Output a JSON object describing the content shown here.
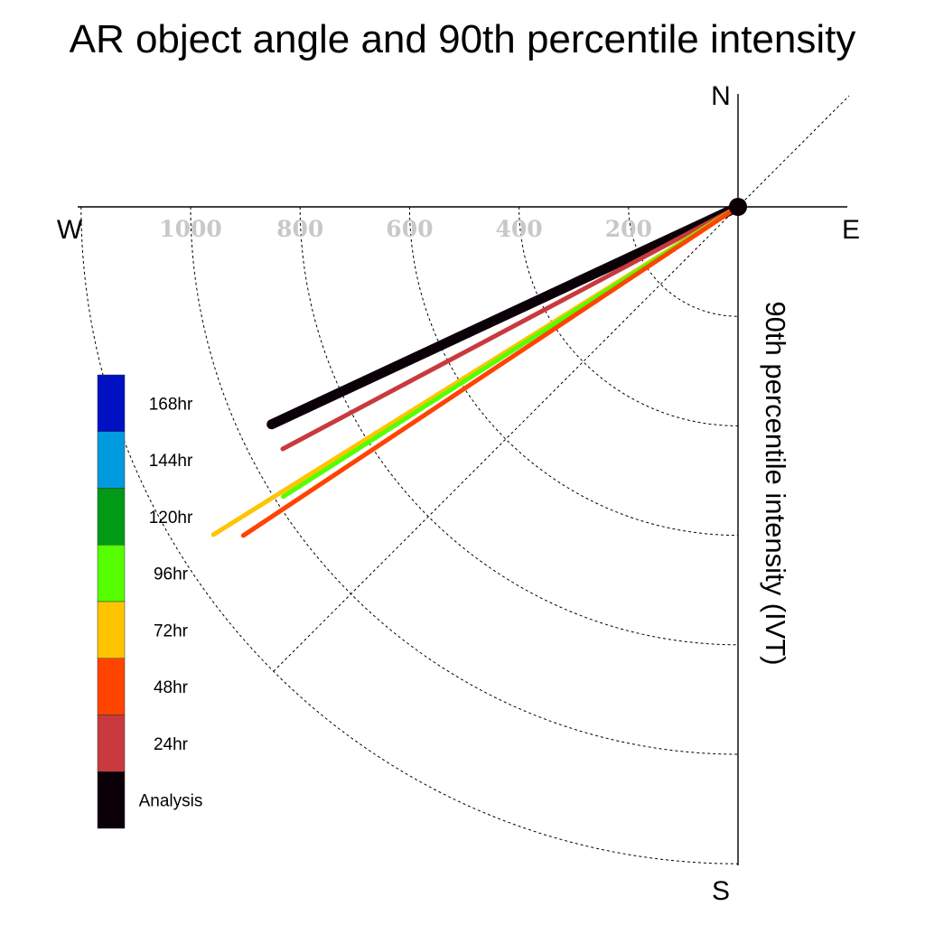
{
  "chart_data": {
    "type": "line",
    "title": "AR object angle and 90th percentile intensity",
    "ylabel": "90th percentile intensity (IVT)",
    "compass": {
      "north": "N",
      "south": "S",
      "east": "E",
      "west": "W"
    },
    "radial_ticks": [
      200,
      400,
      600,
      800,
      1000
    ],
    "radial_ticks_unlabeled": [
      1200
    ],
    "rlim": [
      0,
      1200
    ],
    "quadrant_shown": "south-west",
    "guide_line_angle_deg": 45,
    "grid": true,
    "legend_placement": "left",
    "series": [
      {
        "name": "Analysis",
        "color": "#0c0008",
        "width": 11,
        "angle_deg": 25.0,
        "intensity": 940
      },
      {
        "name": "24hr",
        "color": "#c83a3e",
        "width": 5,
        "angle_deg": 28.0,
        "intensity": 942
      },
      {
        "name": "72hr",
        "color": "#ffc400",
        "width": 5,
        "angle_deg": 32.0,
        "intensity": 1130
      },
      {
        "name": "96hr",
        "color": "#55ff00",
        "width": 5,
        "angle_deg": 32.5,
        "intensity": 985
      },
      {
        "name": "48hr",
        "color": "#ff4400",
        "width": 5,
        "angle_deg": 33.6,
        "intensity": 1085
      }
    ],
    "legend": [
      {
        "name": "168hr",
        "color": "#0011c4"
      },
      {
        "name": "144hr",
        "color": "#009ade"
      },
      {
        "name": "120hr",
        "color": "#009a17"
      },
      {
        "name": "96hr",
        "color": "#55ff00"
      },
      {
        "name": "72hr",
        "color": "#ffc400"
      },
      {
        "name": "48hr",
        "color": "#ff4400"
      },
      {
        "name": "24hr",
        "color": "#c83a3e"
      },
      {
        "name": "Analysis",
        "color": "#0c0008"
      }
    ]
  }
}
